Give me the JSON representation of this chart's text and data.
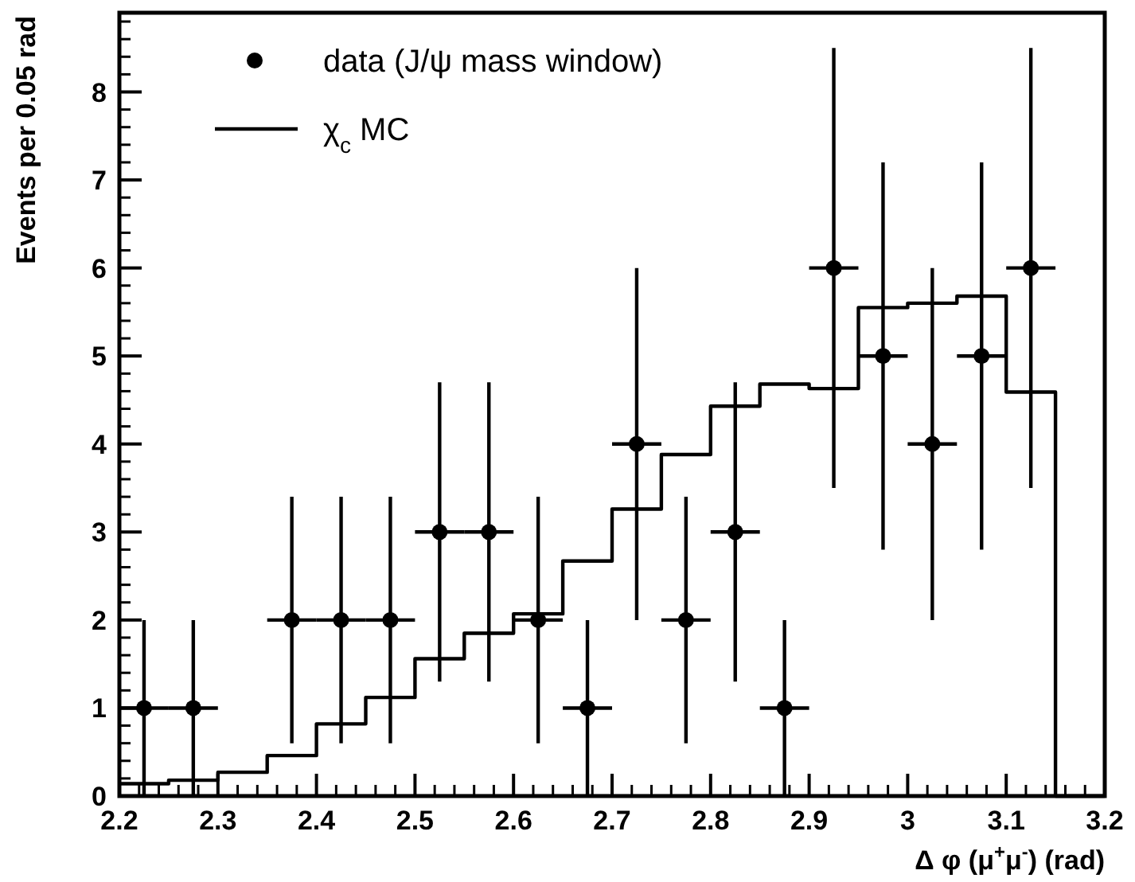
{
  "chart_data": {
    "type": "scatter",
    "xlabel": "Δ φ (μ$^{+}$μ$^{-}$) (rad)",
    "ylabel": "Events per 0.05 rad",
    "xlim": [
      2.2,
      3.2
    ],
    "ylim": [
      0,
      8.9
    ],
    "xticks": [
      2.2,
      2.3,
      2.4,
      2.5,
      2.6,
      2.7,
      2.8,
      2.9,
      3,
      3.1,
      3.2
    ],
    "yticks": [
      0,
      1,
      2,
      3,
      4,
      5,
      6,
      7,
      8
    ],
    "grid": false,
    "legend": "top left",
    "series": [
      {
        "name": "data (J/ψ mass window)",
        "color": "#000000",
        "marker": "circle",
        "x": [
          2.225,
          2.275,
          2.375,
          2.425,
          2.475,
          2.525,
          2.575,
          2.625,
          2.675,
          2.725,
          2.775,
          2.825,
          2.875,
          2.925,
          2.975,
          3.025,
          3.075,
          3.125
        ],
        "values": [
          1,
          1,
          2,
          2,
          2,
          3,
          3,
          2,
          1,
          4,
          2,
          3,
          1,
          6,
          5,
          4,
          5,
          6
        ],
        "errors": [
          1,
          1,
          1.4,
          1.4,
          1.4,
          1.7,
          1.7,
          1.4,
          1,
          2,
          1.4,
          1.7,
          1,
          2.5,
          2.2,
          2,
          2.2,
          2.5
        ],
        "xerrors": [
          0.025,
          0.025,
          0.025,
          0.025,
          0.025,
          0.025,
          0.025,
          0.025,
          0.025,
          0.025,
          0.025,
          0.025,
          0.025,
          0.025,
          0.025,
          0.025,
          0.025,
          0.025
        ]
      },
      {
        "type": "histogram",
        "name": "χ$_{c}$ MC",
        "color": "#000000",
        "line_style": "solid",
        "bins": [
          2.2,
          2.25,
          2.3,
          2.35,
          2.4,
          2.45,
          2.5,
          2.55,
          2.6,
          2.65,
          2.7,
          2.75,
          2.8,
          2.85,
          2.9,
          2.95,
          3,
          3.05,
          3.1,
          3.15,
          3.2
        ],
        "values": [
          0.14,
          0.18,
          0.27,
          0.46,
          0.82,
          1.12,
          1.56,
          1.85,
          2.07,
          2.67,
          3.26,
          3.88,
          4.43,
          4.68,
          4.63,
          5.55,
          5.6,
          5.68,
          4.59,
          0
        ]
      }
    ]
  }
}
